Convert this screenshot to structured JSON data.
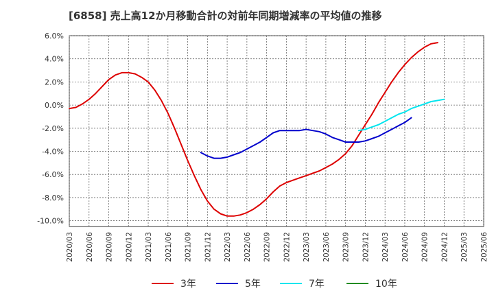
{
  "chart_data": {
    "type": "line",
    "title": "[6858]  売上高12か月移動合計の対前年同期増減率の平均値の推移",
    "ylim": [
      -10.5,
      6.0
    ],
    "y_ticks": [
      6,
      4,
      2,
      0,
      -2,
      -4,
      -6,
      -8,
      -10
    ],
    "y_tick_labels": [
      "6.0%",
      "4.0%",
      "2.0%",
      "0.0%",
      "-2.0%",
      "-4.0%",
      "-6.0%",
      "-8.0%",
      "-10.0%"
    ],
    "x_range": [
      "2020/03",
      "2025/06"
    ],
    "x_tick_labels": [
      "2020/03",
      "2020/06",
      "2020/09",
      "2020/12",
      "2021/03",
      "2021/06",
      "2021/09",
      "2021/12",
      "2022/03",
      "2022/06",
      "2022/09",
      "2022/12",
      "2023/03",
      "2023/06",
      "2023/09",
      "2023/12",
      "2024/03",
      "2024/06",
      "2024/09",
      "2024/12",
      "2025/03",
      "2025/06"
    ],
    "grid": true,
    "legend_position": "bottom",
    "series": [
      {
        "name": "3年",
        "color": "#dd0000",
        "points": [
          [
            "2020/03",
            -0.3
          ],
          [
            "2020/04",
            -0.2
          ],
          [
            "2020/05",
            0.1
          ],
          [
            "2020/06",
            0.5
          ],
          [
            "2020/07",
            1.0
          ],
          [
            "2020/08",
            1.6
          ],
          [
            "2020/09",
            2.2
          ],
          [
            "2020/10",
            2.6
          ],
          [
            "2020/11",
            2.8
          ],
          [
            "2020/12",
            2.8
          ],
          [
            "2021/01",
            2.7
          ],
          [
            "2021/02",
            2.4
          ],
          [
            "2021/03",
            2.0
          ],
          [
            "2021/04",
            1.3
          ],
          [
            "2021/05",
            0.4
          ],
          [
            "2021/06",
            -0.7
          ],
          [
            "2021/07",
            -2.0
          ],
          [
            "2021/08",
            -3.4
          ],
          [
            "2021/09",
            -4.8
          ],
          [
            "2021/10",
            -6.1
          ],
          [
            "2021/11",
            -7.3
          ],
          [
            "2021/12",
            -8.3
          ],
          [
            "2022/01",
            -9.0
          ],
          [
            "2022/02",
            -9.4
          ],
          [
            "2022/03",
            -9.6
          ],
          [
            "2022/04",
            -9.6
          ],
          [
            "2022/05",
            -9.5
          ],
          [
            "2022/06",
            -9.3
          ],
          [
            "2022/07",
            -9.0
          ],
          [
            "2022/08",
            -8.6
          ],
          [
            "2022/09",
            -8.1
          ],
          [
            "2022/10",
            -7.5
          ],
          [
            "2022/11",
            -7.0
          ],
          [
            "2022/12",
            -6.7
          ],
          [
            "2023/01",
            -6.5
          ],
          [
            "2023/02",
            -6.3
          ],
          [
            "2023/03",
            -6.1
          ],
          [
            "2023/04",
            -5.9
          ],
          [
            "2023/05",
            -5.7
          ],
          [
            "2023/06",
            -5.4
          ],
          [
            "2023/07",
            -5.1
          ],
          [
            "2023/08",
            -4.7
          ],
          [
            "2023/09",
            -4.2
          ],
          [
            "2023/10",
            -3.5
          ],
          [
            "2023/11",
            -2.6
          ],
          [
            "2023/12",
            -1.7
          ],
          [
            "2024/01",
            -0.8
          ],
          [
            "2024/02",
            0.2
          ],
          [
            "2024/03",
            1.1
          ],
          [
            "2024/04",
            2.0
          ],
          [
            "2024/05",
            2.8
          ],
          [
            "2024/06",
            3.5
          ],
          [
            "2024/07",
            4.1
          ],
          [
            "2024/08",
            4.6
          ],
          [
            "2024/09",
            5.0
          ],
          [
            "2024/10",
            5.3
          ],
          [
            "2024/11",
            5.4
          ]
        ]
      },
      {
        "name": "5年",
        "color": "#0000cc",
        "points": [
          [
            "2021/11",
            -4.1
          ],
          [
            "2021/12",
            -4.4
          ],
          [
            "2022/01",
            -4.6
          ],
          [
            "2022/02",
            -4.6
          ],
          [
            "2022/03",
            -4.5
          ],
          [
            "2022/04",
            -4.3
          ],
          [
            "2022/05",
            -4.1
          ],
          [
            "2022/06",
            -3.8
          ],
          [
            "2022/07",
            -3.5
          ],
          [
            "2022/08",
            -3.2
          ],
          [
            "2022/09",
            -2.8
          ],
          [
            "2022/10",
            -2.4
          ],
          [
            "2022/11",
            -2.2
          ],
          [
            "2022/12",
            -2.2
          ],
          [
            "2023/01",
            -2.2
          ],
          [
            "2023/02",
            -2.2
          ],
          [
            "2023/03",
            -2.1
          ],
          [
            "2023/04",
            -2.2
          ],
          [
            "2023/05",
            -2.3
          ],
          [
            "2023/06",
            -2.5
          ],
          [
            "2023/07",
            -2.8
          ],
          [
            "2023/08",
            -3.0
          ],
          [
            "2023/09",
            -3.2
          ],
          [
            "2023/10",
            -3.2
          ],
          [
            "2023/11",
            -3.2
          ],
          [
            "2023/12",
            -3.1
          ],
          [
            "2024/01",
            -2.9
          ],
          [
            "2024/02",
            -2.7
          ],
          [
            "2024/03",
            -2.4
          ],
          [
            "2024/04",
            -2.1
          ],
          [
            "2024/05",
            -1.8
          ],
          [
            "2024/06",
            -1.5
          ],
          [
            "2024/07",
            -1.1
          ]
        ]
      },
      {
        "name": "7年",
        "color": "#00e5ee",
        "points": [
          [
            "2023/11",
            -2.2
          ],
          [
            "2023/12",
            -2.1
          ],
          [
            "2024/01",
            -1.9
          ],
          [
            "2024/02",
            -1.7
          ],
          [
            "2024/03",
            -1.4
          ],
          [
            "2024/04",
            -1.1
          ],
          [
            "2024/05",
            -0.8
          ],
          [
            "2024/06",
            -0.6
          ],
          [
            "2024/07",
            -0.3
          ],
          [
            "2024/08",
            -0.1
          ],
          [
            "2024/09",
            0.1
          ],
          [
            "2024/10",
            0.3
          ],
          [
            "2024/11",
            0.4
          ],
          [
            "2024/12",
            0.5
          ]
        ]
      },
      {
        "name": "10年",
        "color": "#228b22",
        "points": []
      }
    ]
  }
}
